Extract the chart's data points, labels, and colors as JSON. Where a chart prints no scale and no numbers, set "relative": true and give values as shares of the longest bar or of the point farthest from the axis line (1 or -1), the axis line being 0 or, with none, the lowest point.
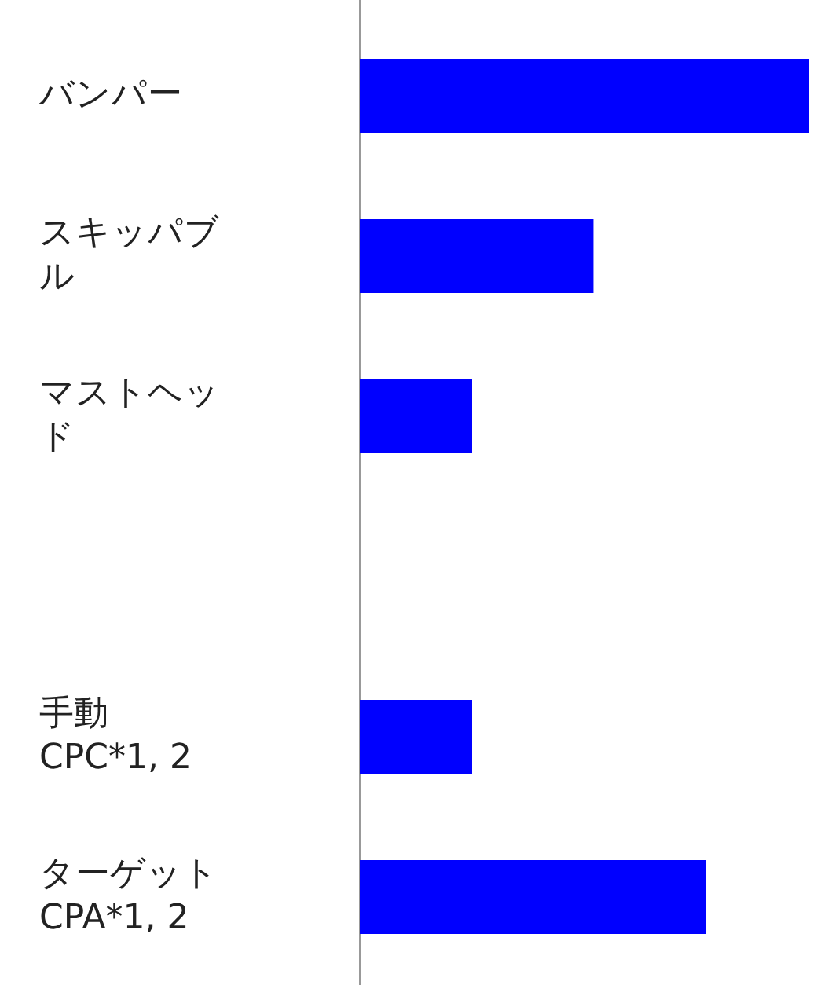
{
  "chart_data": {
    "type": "bar",
    "orientation": "horizontal",
    "relative": true,
    "categories": [
      "バンパー",
      "スキッパブル",
      "マストヘッド",
      null,
      "手動 CPC*1, 2",
      "ターゲット CPA*1, 2"
    ],
    "values": [
      1,
      0.52,
      0.25,
      null,
      0.25,
      0.77
    ],
    "color": "#0000ff"
  }
}
